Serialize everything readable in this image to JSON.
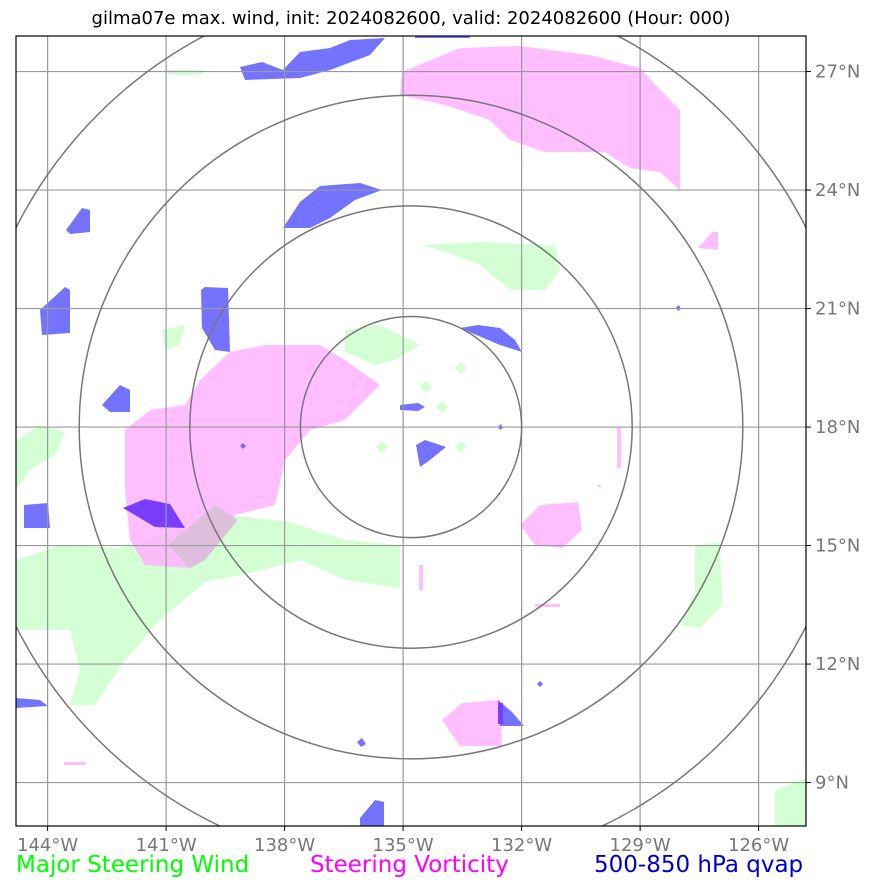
{
  "title": "gilma07e max. wind, init: 2024082600, valid: 2024082600 (Hour: 000)",
  "axes": {
    "lon_labels": [
      "144°W",
      "141°W",
      "138°W",
      "135°W",
      "132°W",
      "129°W",
      "126°W"
    ],
    "lat_labels": [
      "27°N",
      "24°N",
      "21°N",
      "18°N",
      "15°N",
      "12°N",
      "9°N"
    ],
    "lon_range": [
      -144.8,
      -124.8
    ],
    "lat_range": [
      7.9,
      27.9
    ]
  },
  "legend": {
    "wind": {
      "label": "Major Steering Wind",
      "color": "#00ff00"
    },
    "vorticity": {
      "label": "Steering Vorticity",
      "color": "#ff00ff"
    },
    "qvap": {
      "label": "500-850 hPa qvap",
      "color": "#0000cc"
    }
  },
  "range_rings": {
    "center": {
      "lon": -134.8,
      "lat": 18.0
    },
    "radii_deg": [
      2.8,
      5.6,
      8.4,
      11.2
    ]
  },
  "field_colors": {
    "wind_fill": "#ccffcc",
    "vorticity_fill": "#ffb3ff",
    "qvap_fill": "#6464ff",
    "overlap_fill": "#7a3cff",
    "grid": "#999999",
    "ring": "#777777"
  }
}
